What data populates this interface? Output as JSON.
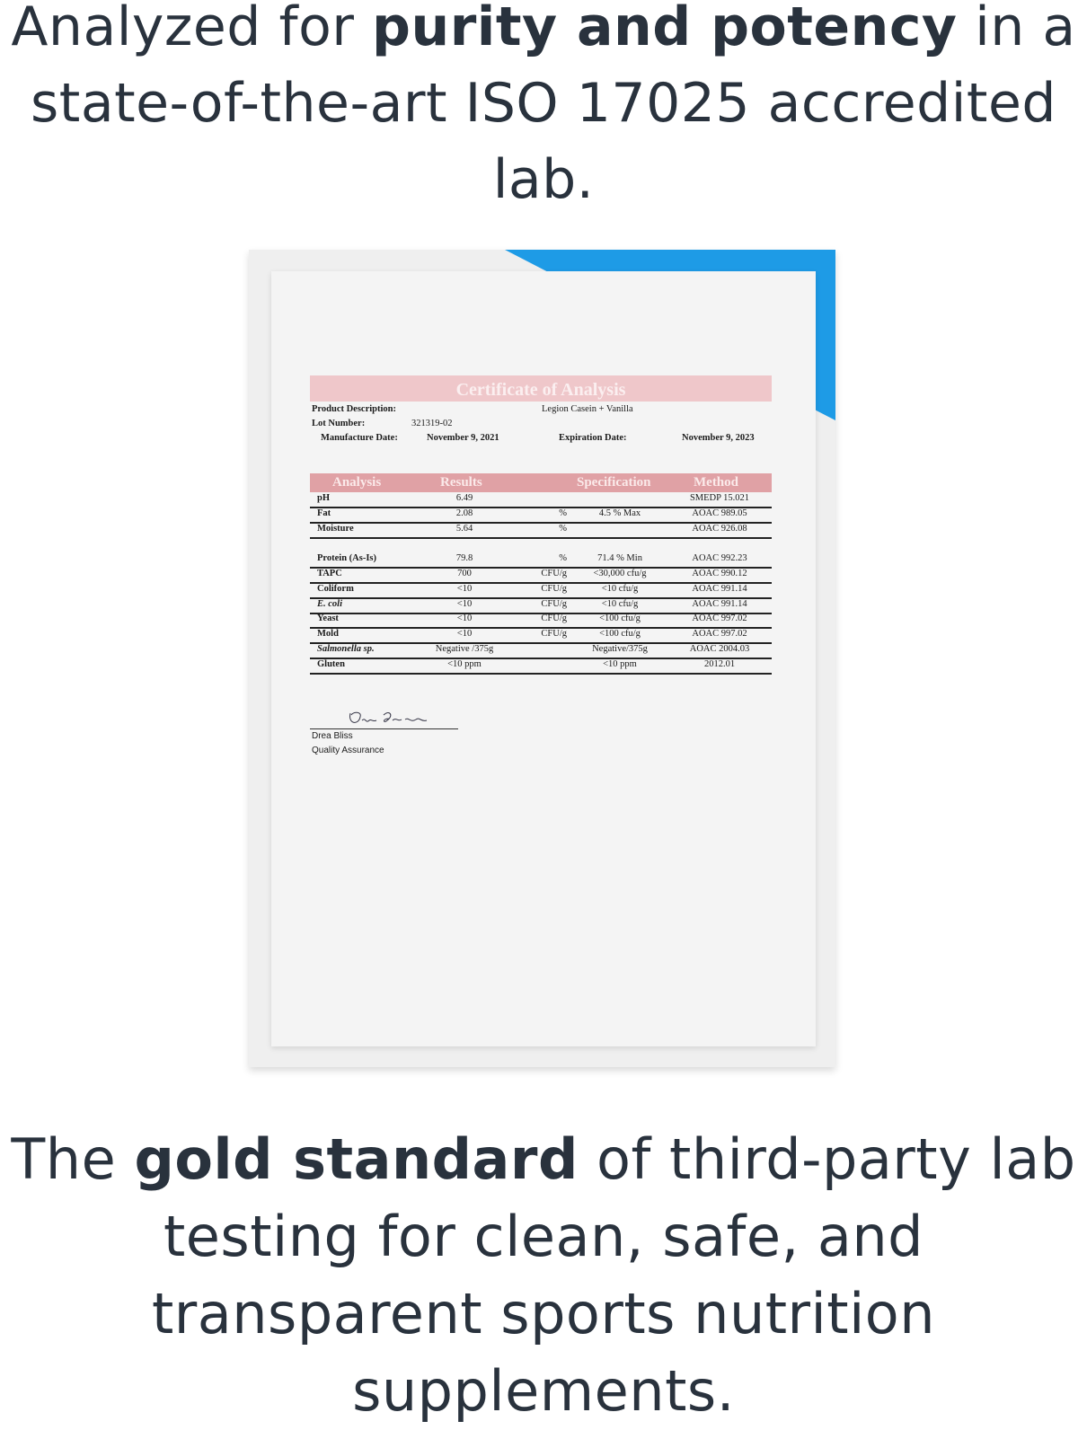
{
  "headline_top": {
    "pre": "Analyzed for ",
    "bold": "purity and potency",
    "post": " in a state-of-the-art ISO 17025 accredited lab."
  },
  "headline_bottom": {
    "pre": "The ",
    "bold": "gold standard",
    "post": " of third-party lab testing for clean, safe, and transparent sports nutrition supplements."
  },
  "colors": {
    "text": "#29323d",
    "accent_blue": "#1e9be6",
    "title_pink": "#efc7ca",
    "header_pink": "#e0a1a5"
  },
  "certificate": {
    "title": "Certificate of Analysis",
    "product_label": "Product Description:",
    "product_value": "Legion Casein + Vanilla",
    "lot_label": "Lot Number:",
    "lot_value": "321319-02",
    "mfg_label": "Manufacture Date:",
    "mfg_value": "November 9, 2021",
    "exp_label": "Expiration Date:",
    "exp_value": "November 9, 2023",
    "columns": [
      "Analysis",
      "Results",
      "Specification",
      "Method"
    ],
    "rows": [
      {
        "analysis": "pH",
        "result": "6.49",
        "unit": "",
        "spec": "",
        "method": "SMEDP 15.021"
      },
      {
        "analysis": "Fat",
        "result": "2.08",
        "unit": "%",
        "spec": "4.5 % Max",
        "method": "AOAC 989.05"
      },
      {
        "analysis": "Moisture",
        "result": "5.64",
        "unit": "%",
        "spec": "",
        "method": "AOAC 926.08"
      },
      {
        "analysis": "Protein (As-Is)",
        "result": "79.8",
        "unit": "%",
        "spec": "71.4 % Min",
        "method": "AOAC 992.23"
      },
      {
        "analysis": "TAPC",
        "result": "700",
        "unit": "CFU/g",
        "spec": "<30,000 cfu/g",
        "method": "AOAC 990.12"
      },
      {
        "analysis": "Coliform",
        "result": "<10",
        "unit": "CFU/g",
        "spec": "<10 cfu/g",
        "method": "AOAC 991.14"
      },
      {
        "analysis": "E. coli",
        "result": "<10",
        "unit": "CFU/g",
        "spec": "<10 cfu/g",
        "method": "AOAC 991.14"
      },
      {
        "analysis": "Yeast",
        "result": "<10",
        "unit": "CFU/g",
        "spec": "<100 cfu/g",
        "method": "AOAC 997.02"
      },
      {
        "analysis": "Mold",
        "result": "<10",
        "unit": "CFU/g",
        "spec": "<100 cfu/g",
        "method": "AOAC 997.02"
      },
      {
        "analysis": "Salmonella sp.",
        "result": "Negative /375g",
        "unit": "",
        "spec": "Negative/375g",
        "method": "AOAC 2004.03"
      },
      {
        "analysis": "Gluten",
        "result": "<10 ppm",
        "unit": "",
        "spec": "<10 ppm",
        "method": "2012.01"
      }
    ],
    "signer_name": "Drea Bliss",
    "signer_title": "Quality Assurance"
  }
}
